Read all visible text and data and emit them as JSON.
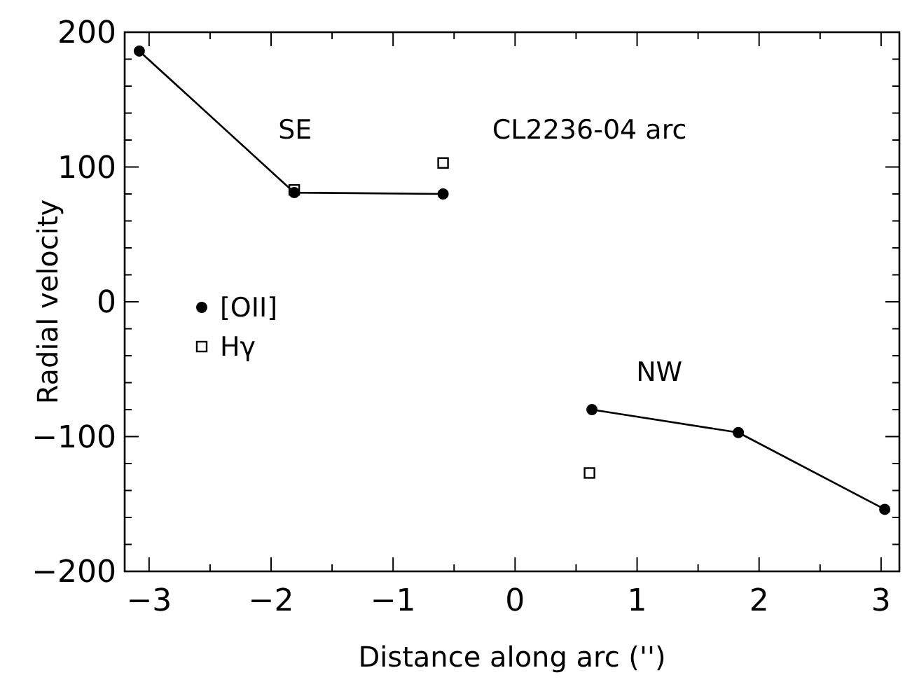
{
  "chart_data": {
    "type": "line",
    "xlabel": "Distance along arc ('')",
    "ylabel": "Radial velocity",
    "xlim": [
      -3.2,
      3.15
    ],
    "ylim": [
      -200,
      200
    ],
    "xticks": [
      -3,
      {
        "value": -2.5,
        "label": null
      },
      -2,
      {
        "value": -1.5,
        "label": null
      },
      -1,
      {
        "value": -0.5,
        "label": null
      },
      0,
      {
        "value": 0.5,
        "label": null
      },
      1,
      {
        "value": 1.5,
        "label": null
      },
      2,
      {
        "value": 2.5,
        "label": null
      },
      3
    ],
    "yticks": [
      -200,
      {
        "value": -180,
        "label": null
      },
      {
        "value": -160,
        "label": null
      },
      {
        "value": -140,
        "label": null
      },
      {
        "value": -120,
        "label": null
      },
      -100,
      {
        "value": -80,
        "label": null
      },
      {
        "value": -60,
        "label": null
      },
      {
        "value": -40,
        "label": null
      },
      {
        "value": -20,
        "label": null
      },
      0,
      {
        "value": 20,
        "label": null
      },
      {
        "value": 40,
        "label": null
      },
      {
        "value": 60,
        "label": null
      },
      {
        "value": 80,
        "label": null
      },
      100,
      {
        "value": 120,
        "label": null
      },
      {
        "value": 140,
        "label": null
      },
      {
        "value": 160,
        "label": null
      },
      {
        "value": 180,
        "label": null
      },
      200
    ],
    "series": [
      {
        "name": "[OII]",
        "marker": "circle",
        "color": "#000000",
        "x": [
          -3.08,
          -1.81,
          -0.59
        ],
        "values": [
          186,
          81,
          80
        ]
      },
      {
        "marker": "circle",
        "color": "#000000",
        "x": [
          0.63,
          1.83,
          3.03
        ],
        "values": [
          -80,
          -97,
          -154
        ]
      },
      {
        "name": "Hγ",
        "type": "scatter",
        "marker": "square",
        "color": "#000000",
        "x": [
          -1.81,
          -0.59,
          0.61
        ],
        "values": [
          83,
          103,
          -127
        ]
      }
    ],
    "annotations": [
      "SE",
      "CL2236-04 arc",
      "NW"
    ],
    "legend": "left",
    "grid": false
  }
}
